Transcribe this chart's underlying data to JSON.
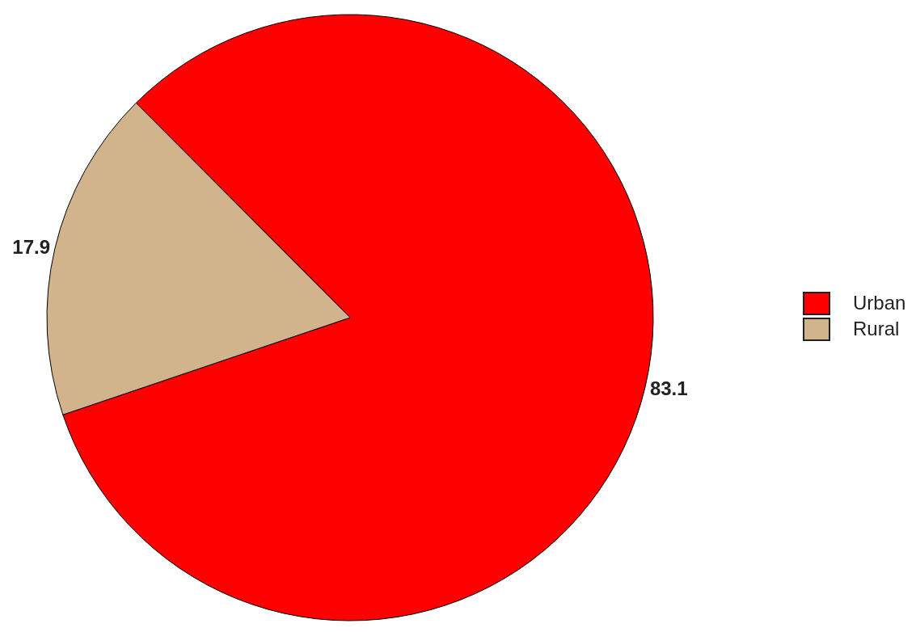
{
  "chart_data": {
    "type": "pie",
    "categories": [
      "Urban",
      "Rural"
    ],
    "values": [
      83.1,
      17.9
    ],
    "colors": [
      "#ff0000",
      "#d2b48c"
    ],
    "data_labels": true,
    "legend": "right"
  }
}
